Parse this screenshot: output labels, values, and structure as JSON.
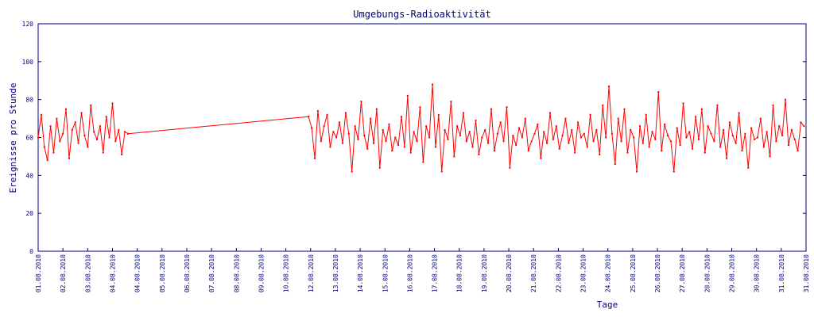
{
  "chart_data": {
    "type": "line",
    "title": "Umgebungs-Radioaktivität",
    "xlabel": "Tage",
    "ylabel": "Ereignisse pro Stunde",
    "ylim": [
      0,
      120
    ],
    "yticks": [
      0,
      20,
      40,
      60,
      80,
      100,
      120
    ],
    "x_unit": "hours",
    "xlim": [
      0,
      744
    ],
    "xtick_step_hours": 24,
    "xtick_labels": [
      "01.08.2010",
      "02.08.2010",
      "03.08.2010",
      "04.08.2010",
      "04.08.2010",
      "05.08.2010",
      "06.08.2010",
      "07.08.2010",
      "08.08.2010",
      "09.08.2010",
      "10.08.2010",
      "12.08.2010",
      "13.08.2010",
      "14.08.2010",
      "15.08.2010",
      "16.08.2010",
      "17.08.2010",
      "18.08.2010",
      "19.08.2010",
      "20.08.2010",
      "21.08.2010",
      "22.08.2010",
      "23.08.2010",
      "24.08.2010",
      "25.08.2010",
      "26.08.2010",
      "27.08.2010",
      "28.08.2010",
      "29.08.2010",
      "30.08.2010",
      "31.08.2010",
      "31.08.2010"
    ],
    "grid": false,
    "colors": {
      "line": "#ff0000",
      "axis": "#000080"
    },
    "segments": [
      {
        "x_start": 0,
        "x_step": 3,
        "values": [
          60,
          72,
          55,
          48,
          66,
          52,
          70,
          58,
          62,
          75,
          49,
          64,
          68,
          57,
          73,
          61,
          55,
          77,
          63,
          59,
          66,
          52,
          71,
          60,
          78,
          58,
          64,
          51,
          63,
          62
        ]
      },
      {
        "x_start": 87,
        "x_step": 175,
        "values": [
          62,
          71
        ]
      },
      {
        "x_start": 262,
        "x_step": 3,
        "values": [
          71,
          65,
          49,
          74,
          58,
          66,
          72,
          55,
          63,
          60,
          68,
          57,
          73,
          62,
          42,
          66,
          59,
          79,
          61,
          54,
          70,
          57,
          75,
          44,
          64,
          58,
          67,
          53,
          60,
          56,
          71,
          55,
          82,
          52,
          63,
          58,
          76,
          47,
          66,
          60,
          88,
          55,
          72,
          42,
          64,
          59,
          79,
          50,
          66,
          61,
          73,
          58,
          63,
          55,
          69,
          51,
          60,
          64,
          57,
          75,
          53,
          62,
          68,
          58,
          76,
          44,
          61,
          56,
          65,
          60,
          70,
          53,
          58,
          62,
          67,
          49,
          63,
          57,
          73,
          59,
          66,
          54,
          61,
          70,
          57,
          64,
          52,
          68,
          60,
          62,
          55,
          72,
          58,
          64,
          51,
          77,
          60,
          87,
          62,
          46,
          70,
          58,
          75,
          52,
          64,
          60,
          42,
          66,
          57,
          72,
          55,
          63,
          59,
          84,
          53,
          67,
          61,
          58,
          42,
          65,
          56,
          78,
          60,
          63,
          54,
          71,
          59,
          75,
          52,
          66,
          62,
          58,
          77,
          55,
          64,
          49,
          68,
          61,
          57,
          73,
          53,
          62,
          44,
          65,
          59,
          60,
          70,
          55,
          63,
          50,
          77,
          58,
          66,
          61,
          80,
          56,
          64,
          59,
          53,
          68,
          66
        ]
      }
    ]
  }
}
